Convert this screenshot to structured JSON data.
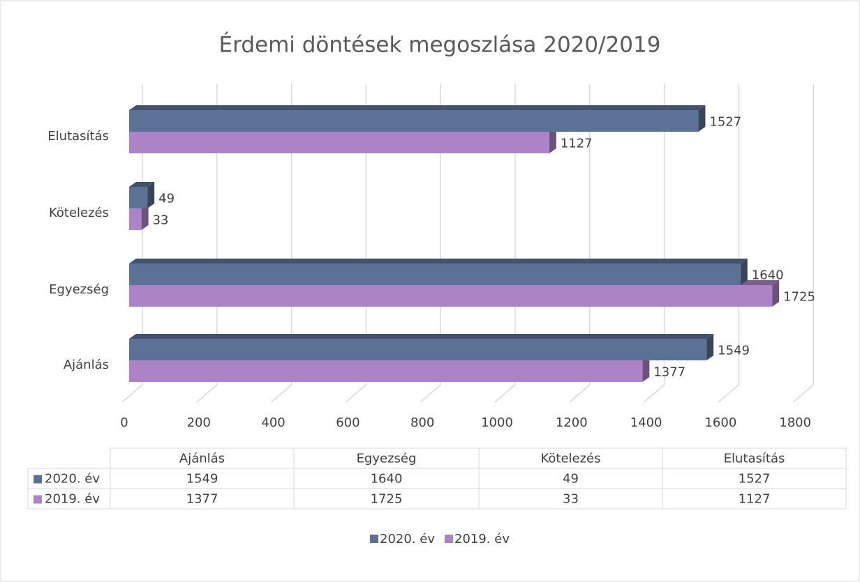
{
  "chart_data": {
    "type": "bar",
    "orientation": "horizontal",
    "title": "Érdemi döntések megoszlása 2020/2019",
    "categories": [
      "Ajánlás",
      "Egyezség",
      "Kötelezés",
      "Elutasítás"
    ],
    "series": [
      {
        "name": "2020. év",
        "color": "#5b7196",
        "values": [
          1549,
          1640,
          49,
          1527
        ]
      },
      {
        "name": "2019. év",
        "color": "#ad83c8",
        "values": [
          1377,
          1725,
          33,
          1127
        ]
      }
    ],
    "xlim": [
      0,
      1800
    ],
    "xticks": [
      0,
      200,
      400,
      600,
      800,
      1000,
      1200,
      1400,
      1600,
      1800
    ],
    "grid": true,
    "legend": "bottom",
    "data_table": true
  }
}
